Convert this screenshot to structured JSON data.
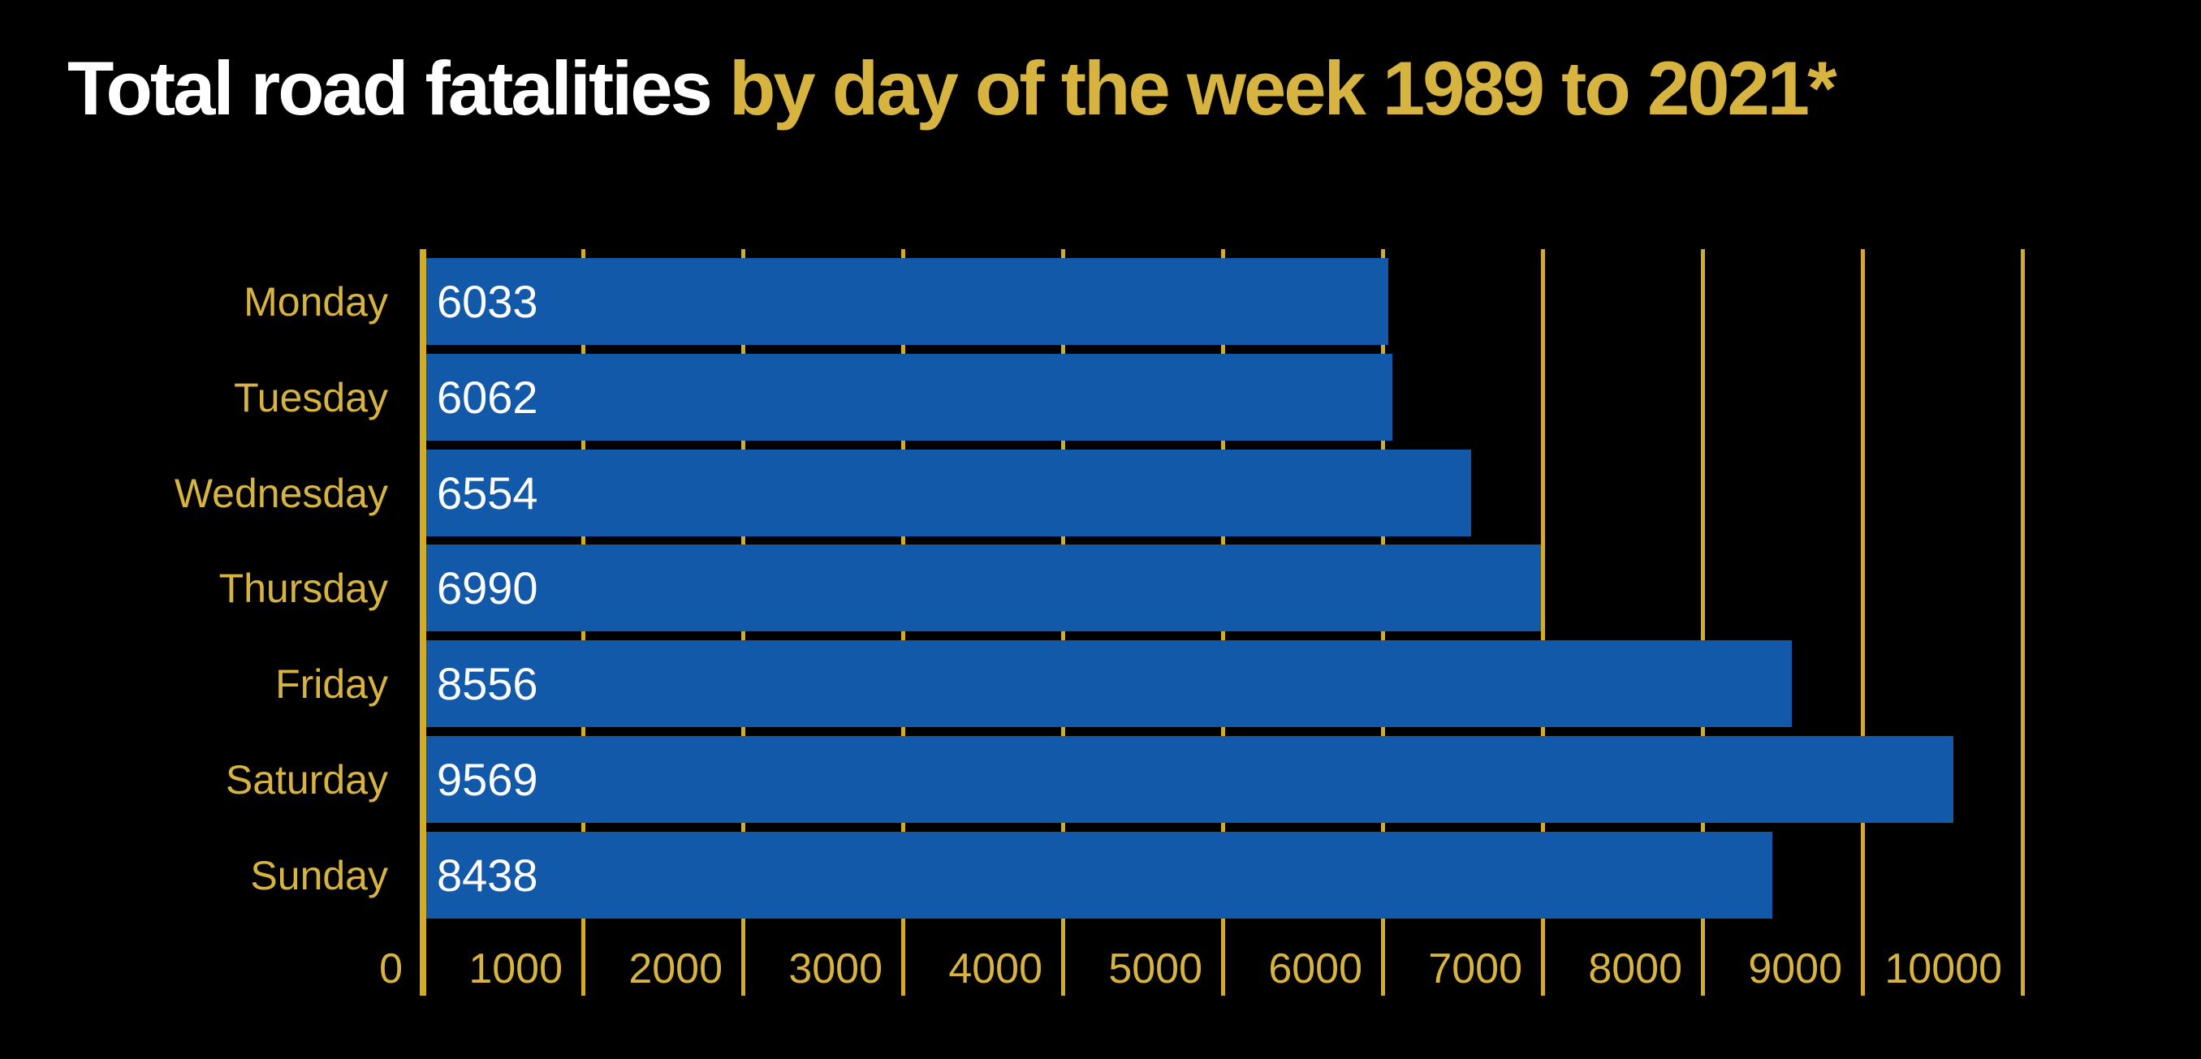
{
  "title": {
    "part1_white": "Total road fatalities",
    "part2_gold": " by day of the week 1989 to 2021*"
  },
  "chart_data": {
    "type": "bar",
    "orientation": "horizontal",
    "title": "Total road fatalities by day of the week 1989 to 2021*",
    "categories": [
      "Monday",
      "Tuesday",
      "Wednesday",
      "Thursday",
      "Friday",
      "Saturday",
      "Sunday"
    ],
    "values": [
      6033,
      6062,
      6554,
      6990,
      8556,
      9569,
      8438
    ],
    "value_labels": [
      "6033",
      "6062",
      "6554",
      "6990",
      "8556",
      "9569",
      "8438"
    ],
    "xlabel": "",
    "ylabel": "",
    "xlim": [
      0,
      10000
    ],
    "xticks": [
      0,
      1000,
      2000,
      3000,
      4000,
      5000,
      6000,
      7000,
      8000,
      9000,
      10000
    ],
    "xtick_labels": [
      "0",
      "1000",
      "2000",
      "3000",
      "4000",
      "5000",
      "6000",
      "7000",
      "8000",
      "9000",
      "10000"
    ],
    "grid": "vertical-gridlines-behind-bars",
    "legend": "none"
  },
  "colors": {
    "background": "#000000",
    "bar_blue": "#1359AA",
    "gold_line": "#D2AC28",
    "gold_text": "#D7B440",
    "title_white": "#FFFFFF",
    "value_white": "#FFFFFF"
  }
}
